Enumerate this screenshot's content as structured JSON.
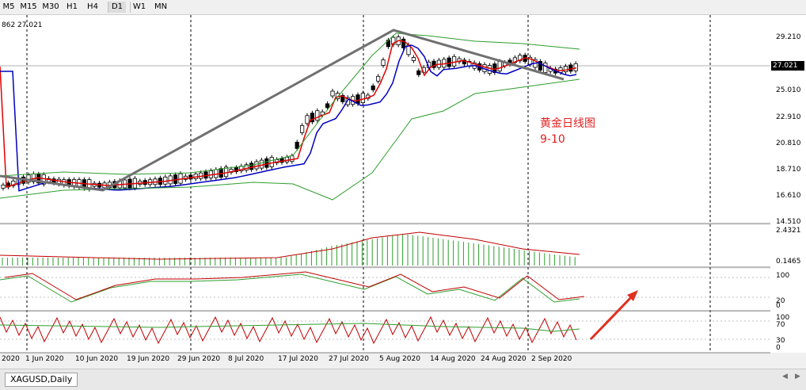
{
  "toolbar": {
    "timeframes": [
      {
        "label": "M5",
        "active": false
      },
      {
        "label": "M15",
        "active": false
      },
      {
        "label": "M30",
        "active": false
      },
      {
        "label": "H1",
        "active": false
      },
      {
        "label": "H4",
        "active": false
      },
      {
        "label": "D1",
        "active": true
      },
      {
        "label": "W1",
        "active": false
      },
      {
        "label": "MN",
        "active": false
      }
    ]
  },
  "chart": {
    "ohlc_readout": "862 27.021",
    "current_price": "27.021",
    "annotation_line1": "黄金日线图",
    "annotation_line2": "9-10",
    "price_axis": [
      "29.210",
      "27.021",
      "25.010",
      "22.910",
      "20.810",
      "18.710",
      "16.610",
      "14.510"
    ],
    "indicator1_axis": [
      "2.4321",
      "0.1465"
    ],
    "indicator2_axis": [
      "100",
      "20",
      "0"
    ],
    "indicator3_axis": [
      "100",
      "70",
      "30",
      "0"
    ],
    "date_labels": [
      "2020",
      "1 Jun 2020",
      "10 Jun 2020",
      "19 Jun 2020",
      "29 Jun 2020",
      "8 Jul 2020",
      "17 Jul 2020",
      "27 Jul 2020",
      "5 Aug 2020",
      "14 Aug 2020",
      "24 Aug 2020",
      "2 Sep 2020"
    ],
    "colors": {
      "bull": "#ffffff",
      "bear": "#000000",
      "ma_fast": "#e00000",
      "ma_slow": "#0000c0",
      "bands": "#2e9e2e",
      "trend": "#707070",
      "arrow": "#e03020"
    }
  },
  "tabs": {
    "active_label": "XAGUSD,Daily"
  }
}
